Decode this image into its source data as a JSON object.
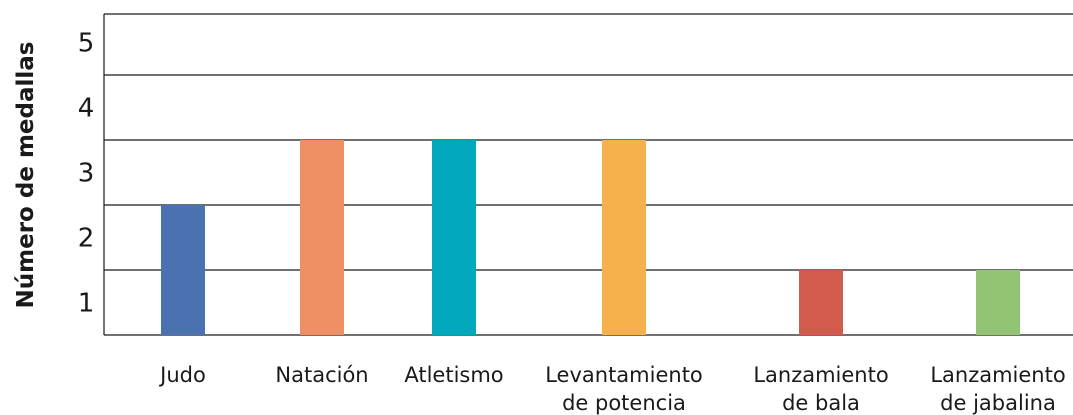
{
  "chart_data": {
    "type": "bar",
    "ylabel": "Número de medallas",
    "xlabel": "",
    "categories": [
      [
        "Judo"
      ],
      [
        "Natación"
      ],
      [
        "Atletismo"
      ],
      [
        "Levantamiento",
        "de potencia"
      ],
      [
        "Lanzamiento",
        "de bala"
      ],
      [
        "Lanzamiento",
        "de jabalina"
      ]
    ],
    "values": [
      2,
      3,
      3,
      3,
      1,
      1
    ],
    "colors": [
      "#4a72b0",
      "#ef9064",
      "#00a8bd",
      "#f4b14c",
      "#d15c4c",
      "#93c474"
    ],
    "ylim": [
      0,
      5
    ],
    "yticks": [
      1,
      2,
      3,
      4,
      5
    ],
    "grid": true,
    "legend": "none"
  }
}
